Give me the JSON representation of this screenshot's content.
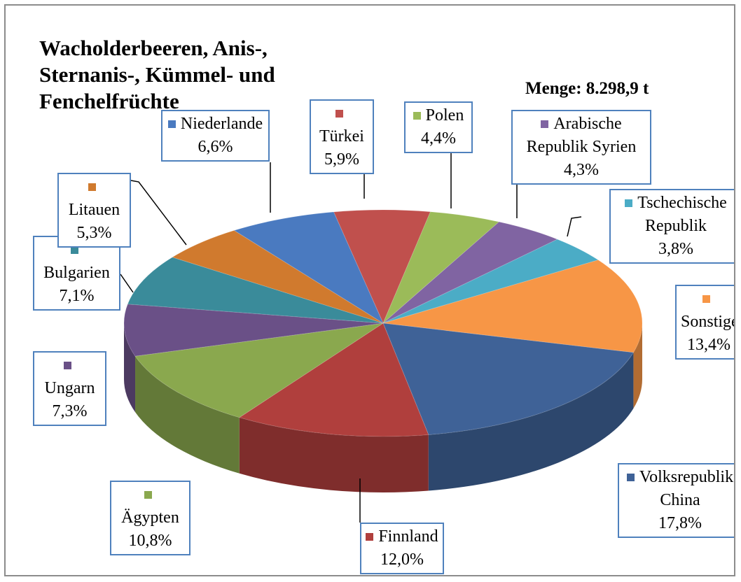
{
  "chart_data": {
    "type": "pie3d",
    "title": "Wacholderbeeren, Anis-, Sternanis-, Kümmel- und Fenchelfrüchte",
    "subtitle": "Menge: 8.298,9 t",
    "categories": [
      "Türkei",
      "Polen",
      "Arabische Republik Syrien",
      "Tschechische Republik",
      "Sonstige",
      "Volksrepublik China",
      "Finnland",
      "Ägypten",
      "Ungarn",
      "Bulgarien",
      "Litauen",
      "Niederlande"
    ],
    "values": [
      5.9,
      4.4,
      4.3,
      3.8,
      13.4,
      17.8,
      12.0,
      10.8,
      7.3,
      7.1,
      5.3,
      6.6
    ],
    "value_labels": [
      "5,9%",
      "4,4%",
      "4,3%",
      "3,8%",
      "13,4%",
      "17,8%",
      "12,0%",
      "10,8%",
      "7,3%",
      "7,1%",
      "5,3%",
      "6,6%"
    ],
    "colors": [
      "#c0504d",
      "#9bbb59",
      "#8064a2",
      "#4bacc6",
      "#f79646",
      "#3f6297",
      "#b03f3d",
      "#8aa84e",
      "#6a5087",
      "#3a8b9a",
      "#d07a2e",
      "#4a7ac0"
    ]
  }
}
